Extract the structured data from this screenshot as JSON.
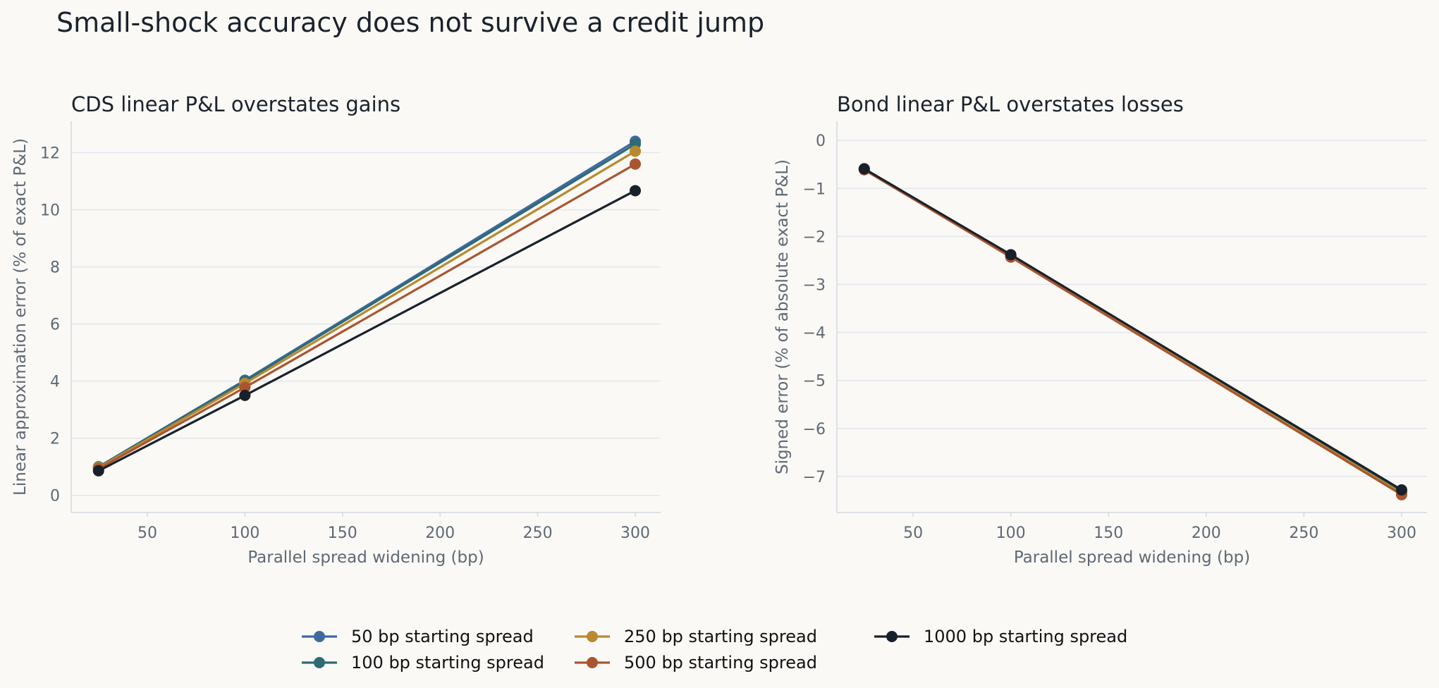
{
  "figure": {
    "title": "Small-shock accuracy does not survive a credit jump"
  },
  "colors": {
    "background": "#faf9f6",
    "grid": "#e2e6ec",
    "spine": "#d3d9e1",
    "tick_text": "#5f6874",
    "title_text": "#1b222b"
  },
  "legend": {
    "placement": "bottom-center",
    "entries": [
      {
        "label": "50 bp starting spread",
        "color": "#3f6aa0"
      },
      {
        "label": "100 bp starting spread",
        "color": "#2e6b73"
      },
      {
        "label": "250 bp starting spread",
        "color": "#b8892f"
      },
      {
        "label": "500 bp starting spread",
        "color": "#a9552f"
      },
      {
        "label": "1000 bp starting spread",
        "color": "#18212b"
      }
    ]
  },
  "chart_data": [
    {
      "type": "line",
      "title": "CDS linear P&L overstates gains",
      "xlabel": "Parallel spread widening (bp)",
      "ylabel": "Linear approximation error (% of exact P&L)",
      "xlim": [
        11,
        313
      ],
      "ylim": [
        -0.6,
        13.1
      ],
      "xticks": [
        50,
        100,
        150,
        200,
        250,
        300
      ],
      "yticks": [
        0,
        2,
        4,
        6,
        8,
        10,
        12
      ],
      "ytick_labels": [
        "0",
        "2",
        "4",
        "6",
        "8",
        "10",
        "12"
      ],
      "grid": "horizontal",
      "x": [
        25,
        100,
        300
      ],
      "series": [
        {
          "name": "50 bp starting spread",
          "color": "#3f6aa0",
          "values": [
            1.0,
            4.03,
            12.4
          ]
        },
        {
          "name": "100 bp starting spread",
          "color": "#2e6b73",
          "values": [
            0.99,
            4.0,
            12.3
          ]
        },
        {
          "name": "250 bp starting spread",
          "color": "#b8892f",
          "values": [
            0.97,
            3.92,
            12.05
          ]
        },
        {
          "name": "500 bp starting spread",
          "color": "#a9552f",
          "values": [
            0.93,
            3.78,
            11.6
          ]
        },
        {
          "name": "1000 bp starting spread",
          "color": "#18212b",
          "values": [
            0.86,
            3.5,
            10.67
          ]
        }
      ]
    },
    {
      "type": "line",
      "title": "Bond linear P&L overstates losses",
      "xlabel": "Parallel spread widening (bp)",
      "ylabel": "Signed error (% of absolute exact P&L)",
      "xlim": [
        11,
        313
      ],
      "ylim": [
        -7.75,
        0.4
      ],
      "xticks": [
        50,
        100,
        150,
        200,
        250,
        300
      ],
      "yticks": [
        0,
        -1,
        -2,
        -3,
        -4,
        -5,
        -6,
        -7
      ],
      "ytick_labels": [
        "0",
        "−1",
        "−2",
        "−3",
        "−4",
        "−5",
        "−6",
        "−7"
      ],
      "grid": "horizontal",
      "x": [
        25,
        100,
        300
      ],
      "series": [
        {
          "name": "50 bp starting spread",
          "color": "#3f6aa0",
          "values": [
            -0.6,
            -2.4,
            -7.33
          ]
        },
        {
          "name": "100 bp starting spread",
          "color": "#2e6b73",
          "values": [
            -0.6,
            -2.4,
            -7.33
          ]
        },
        {
          "name": "250 bp starting spread",
          "color": "#b8892f",
          "values": [
            -0.61,
            -2.42,
            -7.35
          ]
        },
        {
          "name": "500 bp starting spread",
          "color": "#a9552f",
          "values": [
            -0.61,
            -2.43,
            -7.38
          ]
        },
        {
          "name": "1000 bp starting spread",
          "color": "#18212b",
          "values": [
            -0.59,
            -2.38,
            -7.28
          ]
        }
      ]
    }
  ]
}
